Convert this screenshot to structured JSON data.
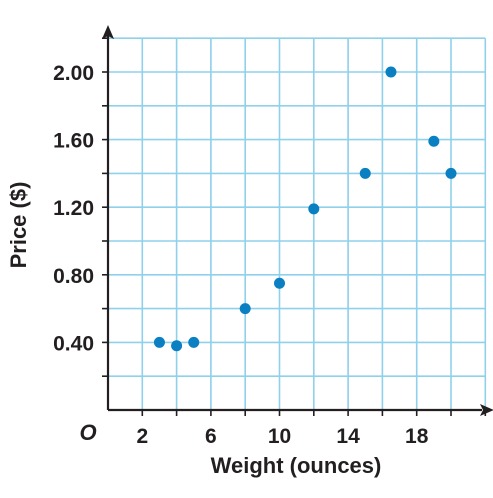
{
  "chart_data": {
    "type": "scatter",
    "title": "",
    "xlabel": "Weight (ounces)",
    "ylabel": "Price ($)",
    "origin_label": "O",
    "xlim": [
      0,
      22
    ],
    "ylim": [
      0,
      2.2
    ],
    "x_grid_step": 2,
    "y_grid_step": 0.2,
    "grid": true,
    "x_ticks": [
      {
        "value": 2,
        "label": "2"
      },
      {
        "value": 6,
        "label": "6"
      },
      {
        "value": 10,
        "label": "10"
      },
      {
        "value": 14,
        "label": "14"
      },
      {
        "value": 18,
        "label": "18"
      }
    ],
    "y_ticks": [
      {
        "value": 0.4,
        "label": "0.40"
      },
      {
        "value": 0.8,
        "label": "0.80"
      },
      {
        "value": 1.2,
        "label": "1.20"
      },
      {
        "value": 1.6,
        "label": "1.60"
      },
      {
        "value": 2.0,
        "label": "2.00"
      }
    ],
    "points": [
      {
        "x": 3,
        "y": 0.4
      },
      {
        "x": 4,
        "y": 0.38
      },
      {
        "x": 5,
        "y": 0.4
      },
      {
        "x": 8,
        "y": 0.6
      },
      {
        "x": 10,
        "y": 0.75
      },
      {
        "x": 12,
        "y": 1.19
      },
      {
        "x": 15,
        "y": 1.4
      },
      {
        "x": 16.5,
        "y": 2.0
      },
      {
        "x": 19,
        "y": 1.59
      },
      {
        "x": 20,
        "y": 1.4
      }
    ],
    "colors": {
      "grid": "#8fd0ea",
      "axis": "#231f20",
      "point": "#0a7fc2"
    }
  }
}
